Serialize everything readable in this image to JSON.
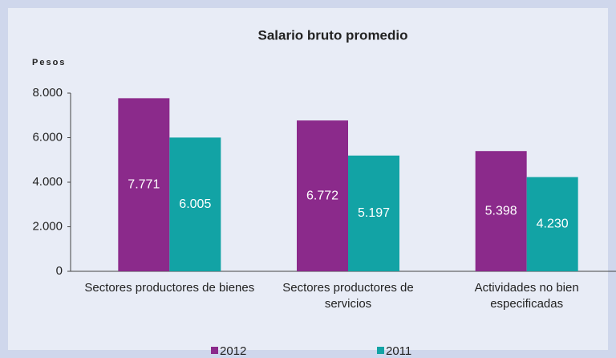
{
  "chart_data": {
    "type": "bar",
    "title": "Salario bruto promedio",
    "y_label": "Pesos",
    "categories": [
      "Sectores productores de bienes",
      "Sectores productores de servicios",
      "Actividades no bien especificadas"
    ],
    "series": [
      {
        "name": "2012",
        "color": "#8b2a8b",
        "values": [
          7771,
          6772,
          5398
        ],
        "value_labels": [
          "7.771",
          "6.772",
          "5.398"
        ]
      },
      {
        "name": "2011",
        "color": "#12a3a5",
        "values": [
          6005,
          5197,
          4230
        ],
        "value_labels": [
          "6.005",
          "5.197",
          "4.230"
        ]
      }
    ],
    "ylim": [
      0,
      8000
    ],
    "yticks": [
      0,
      {
        "value": 2000,
        "label": "2.000"
      },
      {
        "value": 4000,
        "label": "4.000"
      },
      {
        "value": 6000,
        "label": "6.000"
      },
      {
        "value": 8000,
        "label": "8.000"
      }
    ],
    "legend": "bottom"
  }
}
